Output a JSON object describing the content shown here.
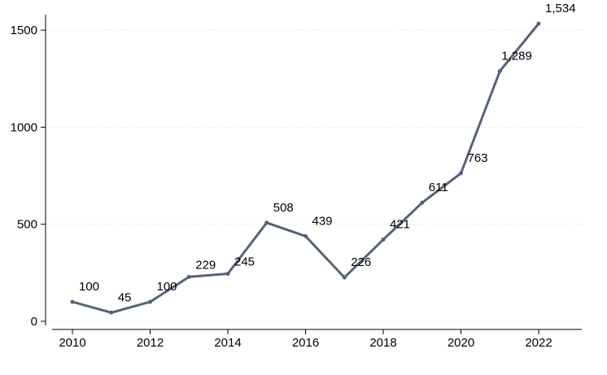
{
  "chart_data": {
    "type": "line",
    "title": "",
    "xlabel": "",
    "ylabel": "",
    "x": [
      2010,
      2011,
      2012,
      2013,
      2014,
      2015,
      2016,
      2017,
      2018,
      2019,
      2020,
      2021,
      2022
    ],
    "series": [
      {
        "values": [
          100,
          45,
          100,
          229,
          245,
          508,
          439,
          226,
          421,
          611,
          763,
          1289,
          1534
        ],
        "labels": [
          "100",
          "45",
          "100",
          "229",
          "245",
          "508",
          "439",
          "226",
          "421",
          "611",
          "763",
          "1,289",
          "1,534"
        ],
        "color": "#56627a"
      }
    ],
    "xlim": [
      2010,
      2022
    ],
    "ylim": [
      0,
      1534
    ],
    "xticks": [
      "2010",
      "2012",
      "2014",
      "2016",
      "2018",
      "2020",
      "2022"
    ],
    "yticks": [
      "0",
      "500",
      "1000",
      "1500"
    ],
    "grid": "horizontal dotted",
    "legend": "none"
  }
}
